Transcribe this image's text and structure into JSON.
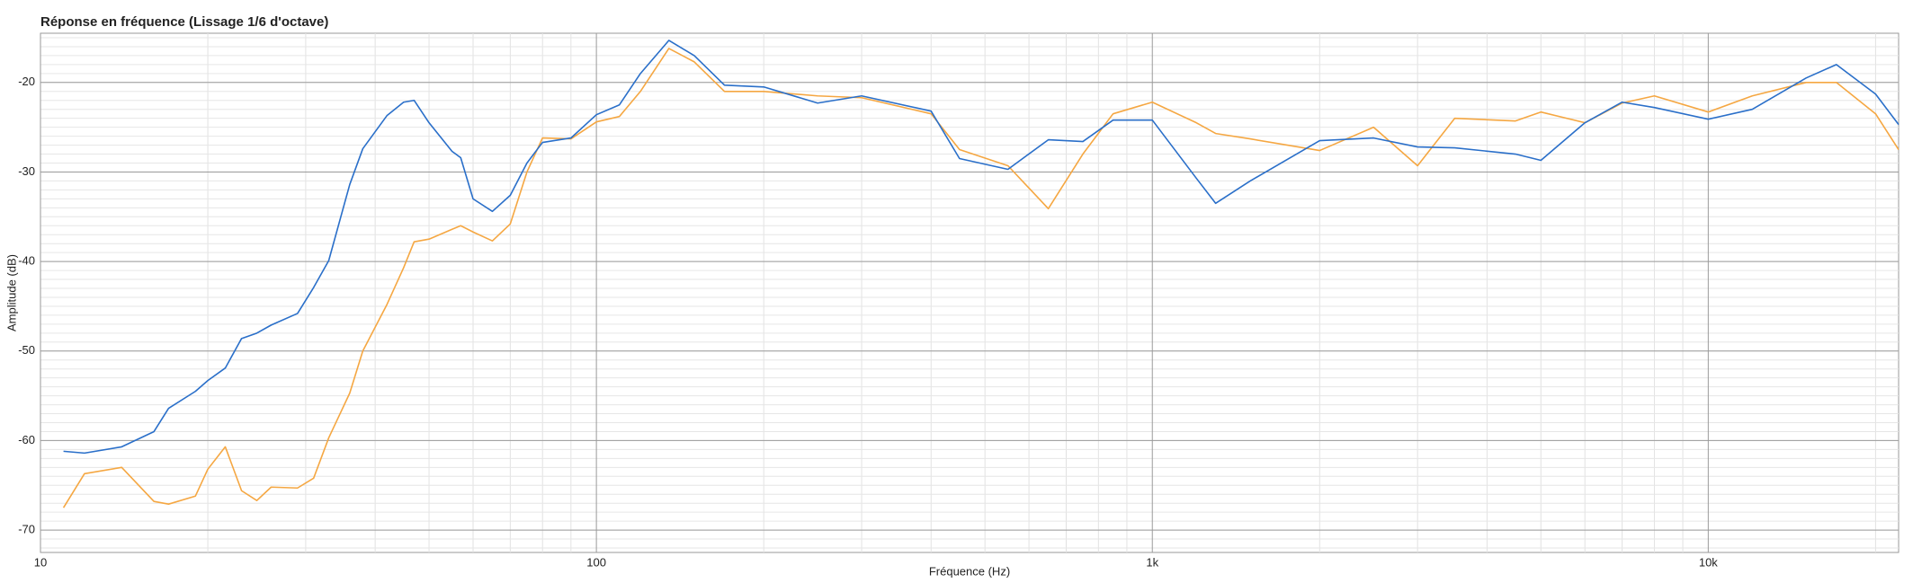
{
  "chart_data": {
    "type": "line",
    "title": "Réponse en fréquence (Lissage 1/6 d'octave)",
    "x_label": "Fréquence (Hz)",
    "y_label": "Amplitude (dB)",
    "x_scale": "log",
    "grid": true,
    "minor_grid": true,
    "xlim": [
      10,
      22000
    ],
    "ylim": [
      -72.5,
      -14.5
    ],
    "xticks": [
      10,
      100,
      {
        "value": 1000,
        "label": "1k"
      },
      {
        "value": 10000,
        "label": "10k"
      }
    ],
    "yticks": [
      -20,
      -30,
      -40,
      -50,
      -60,
      -70
    ],
    "x": [
      11,
      12,
      14,
      16,
      17,
      19,
      20,
      21.5,
      23,
      24.5,
      26,
      29,
      31,
      33,
      36,
      38,
      42,
      45,
      47,
      50,
      55,
      57,
      60,
      65,
      70,
      75,
      80,
      90,
      100,
      110,
      120,
      135,
      150,
      170,
      200,
      250,
      300,
      400,
      450,
      550,
      650,
      750,
      850,
      1000,
      1200,
      1300,
      1500,
      2000,
      2500,
      3000,
      3500,
      4500,
      5000,
      6000,
      7000,
      8000,
      10000,
      12000,
      15000,
      17000,
      20000,
      22000
    ],
    "series": [
      {
        "color": "#2a6fc9",
        "values": [
          -61.2,
          -61.4,
          -60.7,
          -59,
          -56.4,
          -54.5,
          -53.3,
          -51.9,
          -48.6,
          -48,
          -47.1,
          -45.8,
          -42.9,
          -39.9,
          -31.4,
          -27.4,
          -23.7,
          -22.2,
          -22,
          -24.5,
          -27.7,
          -28.4,
          -33,
          -34.4,
          -32.6,
          -29,
          -26.7,
          -26.2,
          -23.6,
          -22.5,
          -19,
          -15.3,
          -17,
          -20.3,
          -20.5,
          -22.3,
          -21.5,
          -23.2,
          -28.5,
          -29.7,
          -26.4,
          -26.6,
          -24.2,
          -24.2,
          -30.7,
          -33.5,
          -31,
          -26.5,
          -26.2,
          -27.2,
          -27.3,
          -28,
          -28.7,
          -24.5,
          -22.2,
          -22.8,
          -24.1,
          -23,
          -19.5,
          -18,
          -21.3,
          -24.7
        ]
      },
      {
        "color": "#f5a742",
        "values": [
          -67.5,
          -63.7,
          -63,
          -66.8,
          -67.1,
          -66.2,
          -63.2,
          -60.7,
          -65.6,
          -66.7,
          -65.2,
          -65.3,
          -64.2,
          -59.7,
          -54.7,
          -50,
          -44.8,
          -40.7,
          -37.8,
          -37.5,
          -36.4,
          -36,
          -36.7,
          -37.7,
          -35.8,
          -30,
          -26.2,
          -26.3,
          -24.4,
          -23.8,
          -21,
          -16.2,
          -17.7,
          -21,
          -21,
          -21.5,
          -21.7,
          -23.5,
          -27.5,
          -29.3,
          -34.1,
          -28,
          -23.5,
          -22.2,
          -24.5,
          -25.7,
          -26.3,
          -27.6,
          -25,
          -29.3,
          -24,
          -24.3,
          -23.3,
          -24.5,
          -22.3,
          -21.5,
          -23.3,
          -21.5,
          -20,
          -20,
          -23.5,
          -27.5
        ]
      }
    ]
  }
}
